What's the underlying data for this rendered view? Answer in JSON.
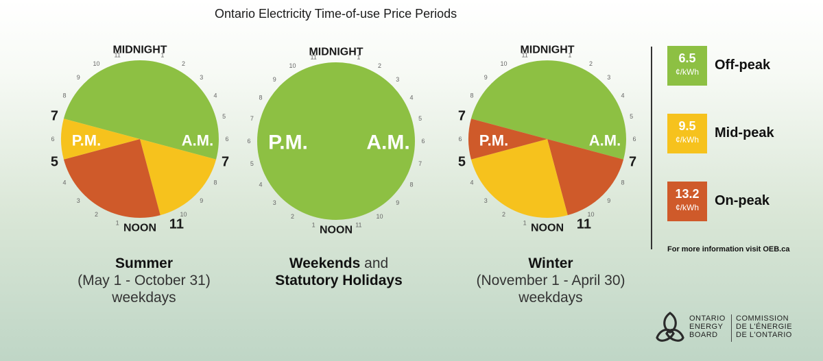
{
  "title": "Ontario Electricity Time-of-use Price Periods",
  "clock_labels": {
    "top": "MIDNIGHT",
    "bottom": "NOON",
    "am": "A.M.",
    "pm": "P.M."
  },
  "colors": {
    "off_peak": "#8dc043",
    "mid_peak": "#f6c21d",
    "on_peak": "#cf5a2a"
  },
  "clocks": [
    {
      "name": "summer",
      "segments": [
        {
          "from": 19,
          "to": 31,
          "period": "off_peak"
        },
        {
          "from": 7,
          "to": 11,
          "period": "mid_peak"
        },
        {
          "from": 11,
          "to": 17,
          "period": "on_peak"
        },
        {
          "from": 17,
          "to": 19,
          "period": "mid_peak"
        }
      ],
      "big_numbers": [
        {
          "label": "7",
          "pos": 7
        },
        {
          "label": "11",
          "pos": 11
        },
        {
          "label": "5",
          "pos": 17
        },
        {
          "label": "7",
          "pos": 19
        }
      ],
      "caption_bold": "Summer",
      "caption_line2": "(May 1 - October 31)",
      "caption_line3": "weekdays"
    },
    {
      "name": "weekends",
      "segments": [
        {
          "from": 0,
          "to": 24,
          "period": "off_peak"
        }
      ],
      "big_numbers": [],
      "caption_bold": "Weekends",
      "caption_and": " and",
      "caption_line2": "Statutory Holidays"
    },
    {
      "name": "winter",
      "segments": [
        {
          "from": 19,
          "to": 31,
          "period": "off_peak"
        },
        {
          "from": 7,
          "to": 11,
          "period": "on_peak"
        },
        {
          "from": 11,
          "to": 17,
          "period": "mid_peak"
        },
        {
          "from": 17,
          "to": 19,
          "period": "on_peak"
        }
      ],
      "big_numbers": [
        {
          "label": "7",
          "pos": 7
        },
        {
          "label": "11",
          "pos": 11
        },
        {
          "label": "5",
          "pos": 17
        },
        {
          "label": "7",
          "pos": 19
        }
      ],
      "caption_bold": "Winter",
      "caption_line2": "(November 1 - April 30)",
      "caption_line3": "weekdays"
    }
  ],
  "legend": [
    {
      "period": "off_peak",
      "value": "6.5",
      "unit": "¢/kWh",
      "label": "Off-peak"
    },
    {
      "period": "mid_peak",
      "value": "9.5",
      "unit": "¢/kWh",
      "label": "Mid-peak"
    },
    {
      "period": "on_peak",
      "value": "13.2",
      "unit": "¢/kWh",
      "label": "On-peak"
    }
  ],
  "info_text": "For more information visit OEB.ca",
  "logo": {
    "en": [
      "ONTARIO",
      "ENERGY",
      "BOARD"
    ],
    "fr": [
      "COMMISSION",
      "DE L'ÉNERGIE",
      "DE L'ONTARIO"
    ]
  }
}
